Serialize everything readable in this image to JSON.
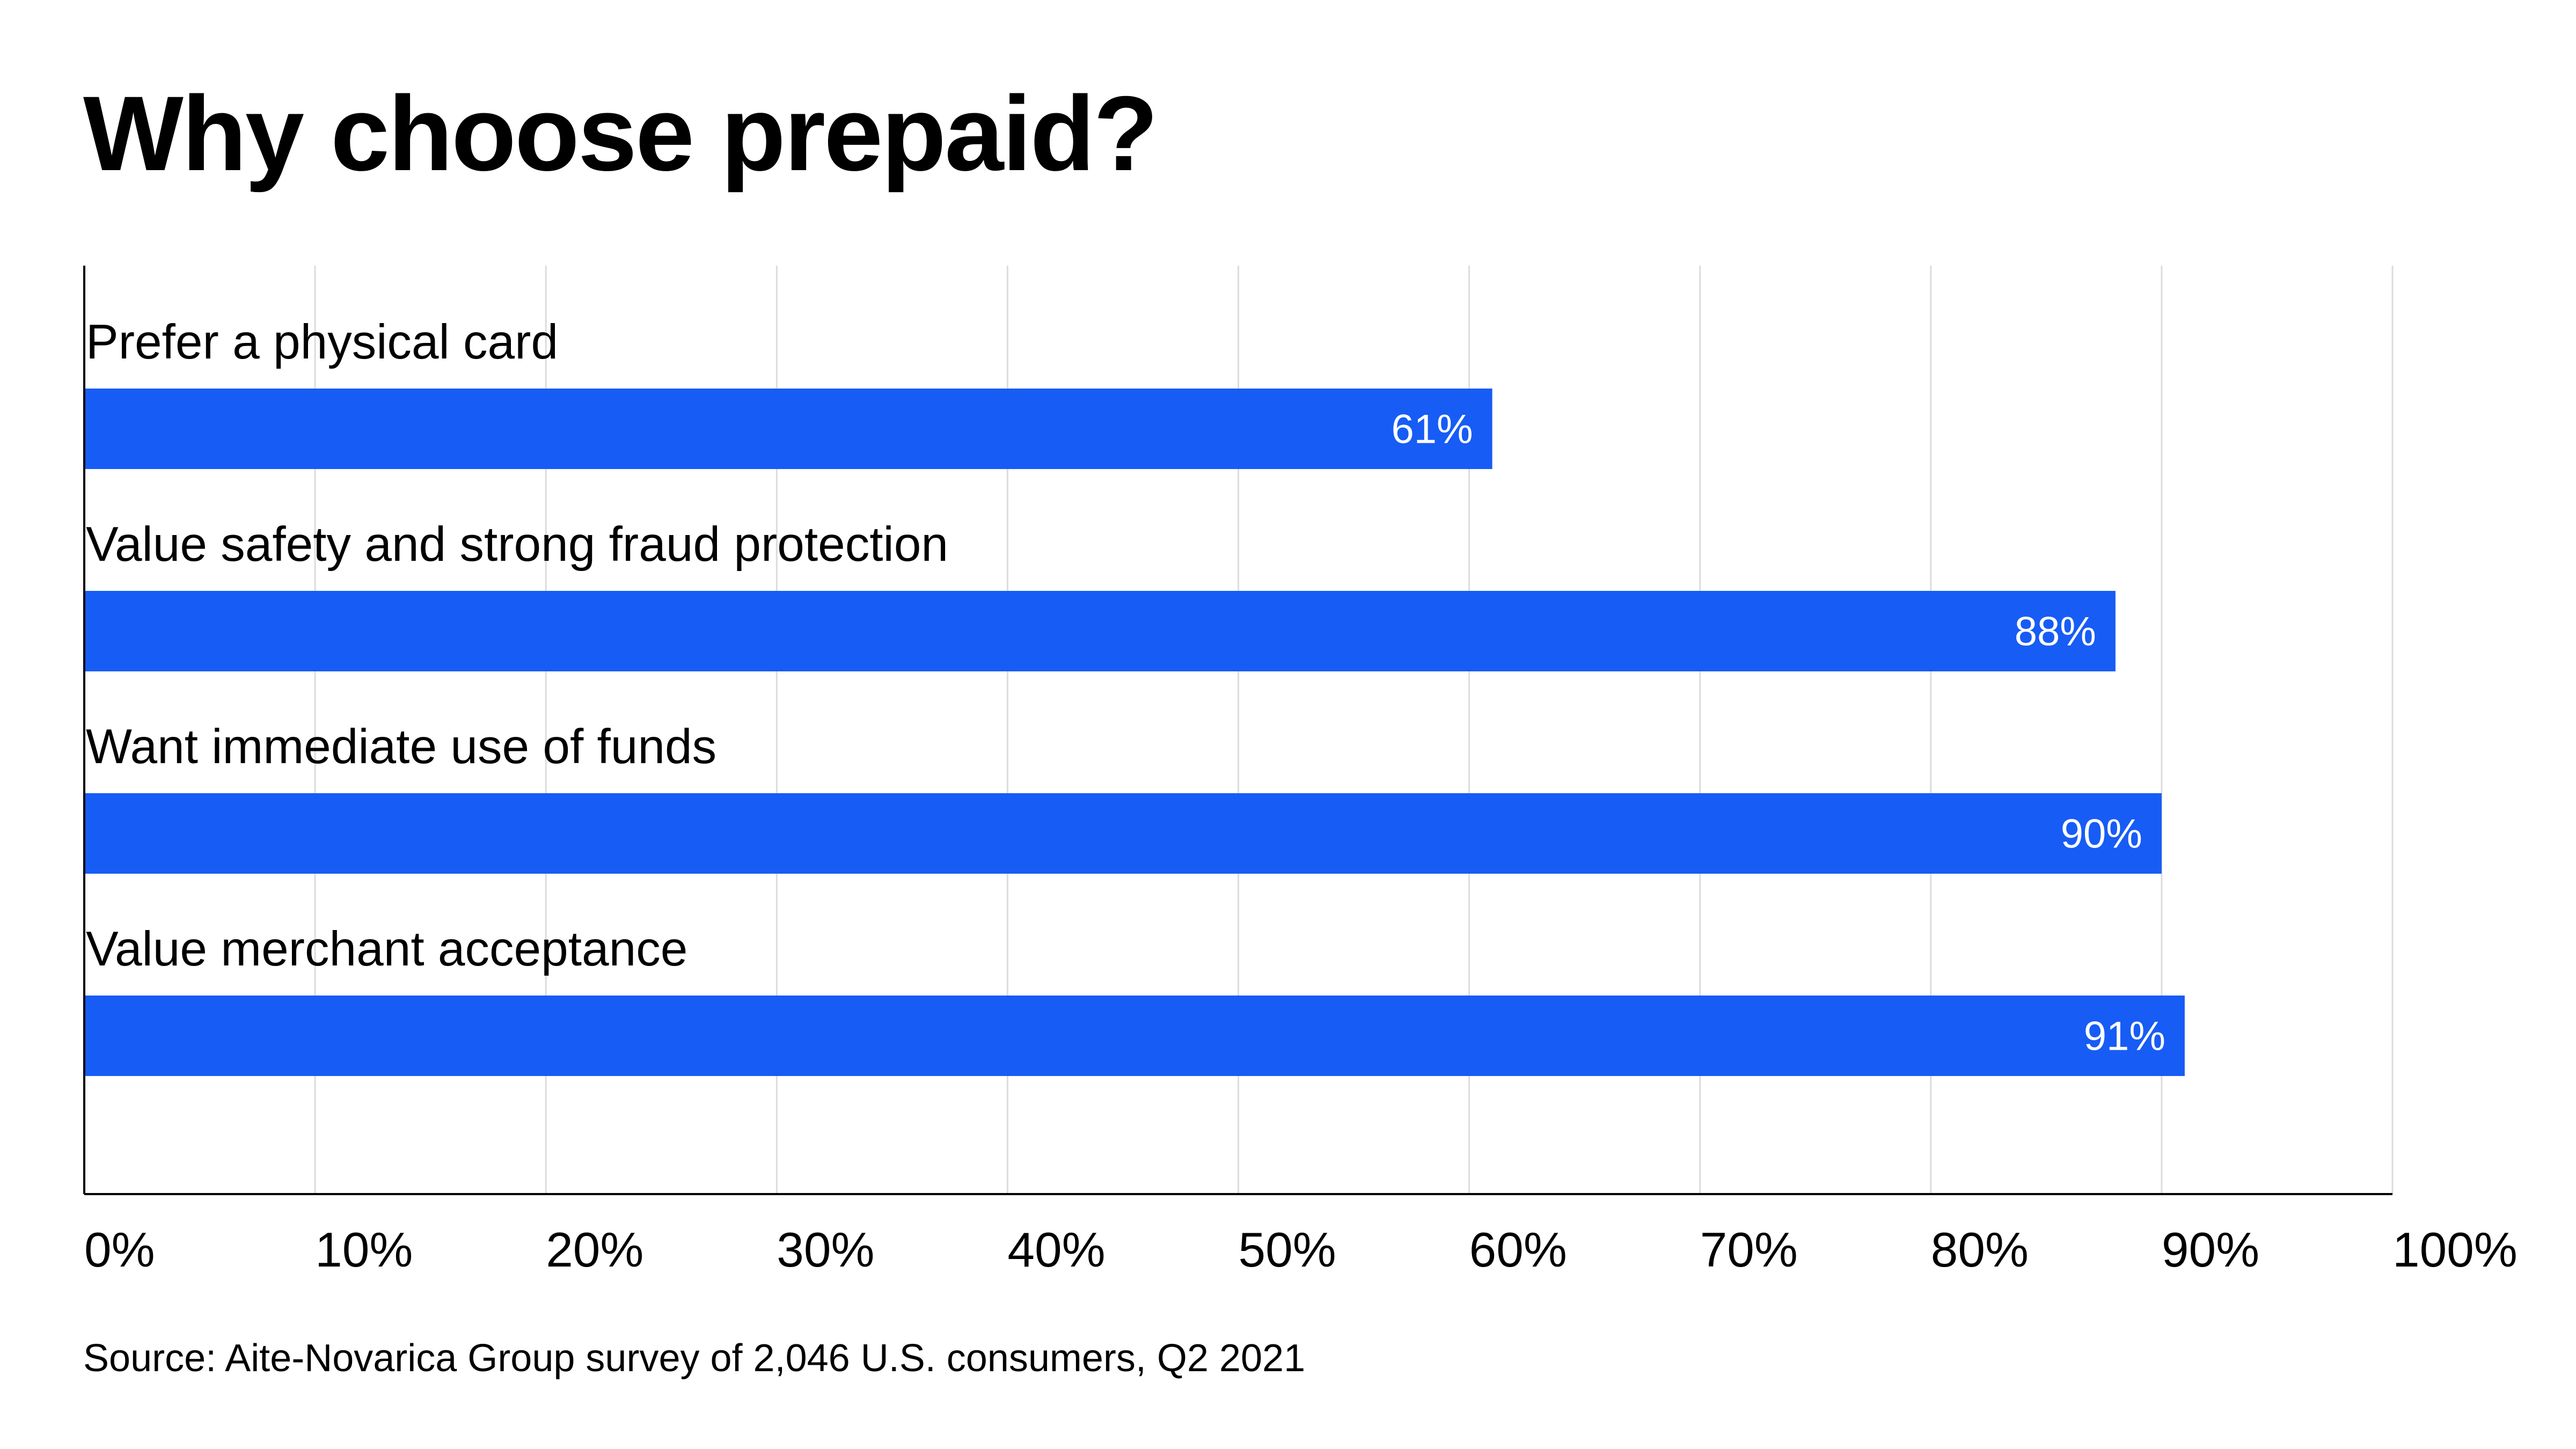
{
  "title": "Why choose prepaid?",
  "source": "Source: Aite-Novarica Group survey of 2,046 U.S. consumers, Q2 2021",
  "colors": {
    "bar": "#175cf5",
    "bar_label": "#ffffff",
    "grid": "#dcdcdc",
    "axis": "#000000",
    "text": "#000000"
  },
  "chart_data": {
    "type": "bar",
    "orientation": "horizontal",
    "categories": [
      "Prefer a physical card",
      "Value safety and strong fraud protection",
      "Want immediate use of funds",
      "Value merchant acceptance"
    ],
    "values": [
      61,
      88,
      90,
      91
    ],
    "value_labels": [
      "61%",
      "88%",
      "90%",
      "91%"
    ],
    "xlim": [
      0,
      100
    ],
    "x_ticks": [
      0,
      10,
      20,
      30,
      40,
      50,
      60,
      70,
      80,
      90,
      100
    ],
    "x_tick_labels": [
      "0%",
      "10%",
      "20%",
      "30%",
      "40%",
      "50%",
      "60%",
      "70%",
      "80%",
      "90%",
      "100%"
    ],
    "grid": true,
    "legend": "none"
  }
}
